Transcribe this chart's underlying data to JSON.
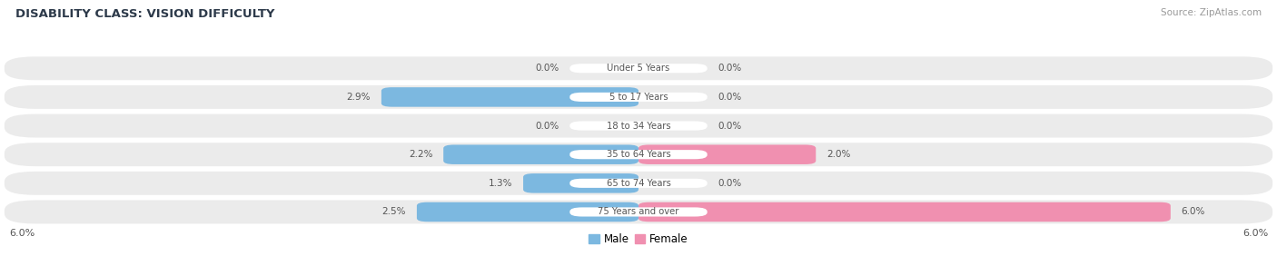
{
  "title": "DISABILITY CLASS: VISION DIFFICULTY",
  "source": "Source: ZipAtlas.com",
  "categories": [
    "Under 5 Years",
    "5 to 17 Years",
    "18 to 34 Years",
    "35 to 64 Years",
    "65 to 74 Years",
    "75 Years and over"
  ],
  "male_values": [
    0.0,
    2.9,
    0.0,
    2.2,
    1.3,
    2.5
  ],
  "female_values": [
    0.0,
    0.0,
    0.0,
    2.0,
    0.0,
    6.0
  ],
  "max_val": 6.0,
  "male_color": "#7cb8e0",
  "female_color": "#f090b0",
  "row_bg_color": "#ebebeb",
  "title_color": "#2d3a4a",
  "source_color": "#999999",
  "value_color": "#555555",
  "center_label_color": "#555555",
  "figsize": [
    14.06,
    3.04
  ],
  "dpi": 100
}
